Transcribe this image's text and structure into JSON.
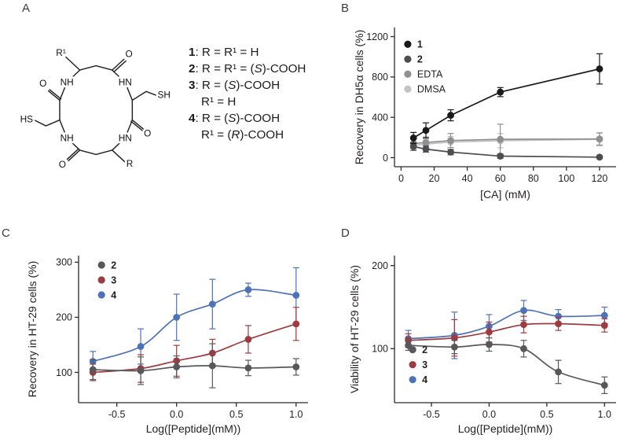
{
  "panels": {
    "a": {
      "label": "A"
    },
    "b": {
      "label": "B"
    },
    "c": {
      "label": "C"
    },
    "d": {
      "label": "D"
    }
  },
  "structure": {
    "labels": {
      "r1": "R¹",
      "r": "R",
      "sh_right": "SH",
      "hs_left": "HS",
      "nh_top_left": "NH",
      "hn_top_right": "HN",
      "nh_bottom_left": "NH",
      "hn_bottom_right": "HN",
      "o_top": "O",
      "o_right": "O",
      "o_bottom_left": "O",
      "o_left": "O"
    }
  },
  "compounds": [
    {
      "num": "1",
      "line1": ": R = R¹ = H",
      "line2": ""
    },
    {
      "num": "2",
      "line1": ": R = R¹ = (S)-COOH",
      "line2": ""
    },
    {
      "num": "3",
      "line1": ": R = (S)-COOH",
      "line2": "R¹ = H"
    },
    {
      "num": "4",
      "line1": ": R = (S)-COOH",
      "line2": "R¹ = (R)-COOH"
    }
  ],
  "chart_data": [
    {
      "panel": "B",
      "type": "scatter",
      "line_style": "straight",
      "xlabel": "[CA] (mM)",
      "ylabel": "Recovery in DH5α cells (%)",
      "xlim": [
        -4,
        130
      ],
      "ylim": [
        -90,
        1290
      ],
      "xticks": {
        "values": [
          0,
          20,
          40,
          60,
          80,
          100,
          120
        ],
        "labels": [
          "0",
          "20",
          "40",
          "60",
          "80",
          "100",
          "120"
        ]
      },
      "yticks": {
        "values": [
          0,
          400,
          800,
          1200
        ],
        "labels": [
          "0",
          "400",
          "800",
          "1200"
        ]
      },
      "x": [
        7.5,
        15,
        30,
        60,
        120
      ],
      "series": [
        {
          "name": "1",
          "color": "#1a1a1a",
          "values": [
            195,
            270,
            420,
            650,
            880
          ],
          "errors": [
            55,
            75,
            55,
            45,
            150
          ]
        },
        {
          "name": "2",
          "color": "#4d4d50",
          "values": [
            110,
            85,
            55,
            15,
            5
          ],
          "errors": [
            38,
            30,
            26,
            20,
            15
          ]
        },
        {
          "name": "EDTA",
          "color": "#8f8f92",
          "values": [
            140,
            150,
            170,
            182,
            185
          ],
          "errors": [
            45,
            55,
            70,
            150,
            60
          ]
        },
        {
          "name": "DMSA",
          "color": "#c2c2c4",
          "values": [
            120,
            135,
            155,
            168,
            182
          ],
          "errors": [
            35,
            45,
            55,
            70,
            65
          ]
        }
      ],
      "legend": {
        "position": "top-left",
        "fx": 0.06,
        "fy": 0.12
      }
    },
    {
      "panel": "C",
      "type": "scatter",
      "line_style": "smooth",
      "xlabel": "Log([Peptide](mM))",
      "ylabel": "Recovery in HT-29 cells (%)",
      "xlim": [
        -0.82,
        1.1
      ],
      "ylim": [
        45,
        312
      ],
      "xticks": {
        "values": [
          -0.5,
          0,
          0.5,
          1
        ],
        "labels": [
          "-0.5",
          "0.0",
          "0.5",
          "1.0"
        ]
      },
      "yticks": {
        "values": [
          100,
          200,
          300
        ],
        "labels": [
          "100",
          "200",
          "300"
        ]
      },
      "x": [
        -0.7,
        -0.3,
        0,
        0.3,
        0.6,
        1
      ],
      "series": [
        {
          "name": "2",
          "color": "#58585b",
          "values": [
            105,
            103,
            110,
            112,
            108,
            110
          ],
          "errors": [
            18,
            25,
            20,
            40,
            14,
            15
          ]
        },
        {
          "name": "3",
          "color": "#9e3b40",
          "values": [
            100,
            107,
            121,
            135,
            160,
            188
          ],
          "errors": [
            15,
            25,
            28,
            25,
            25,
            30
          ]
        },
        {
          "name": "4",
          "color": "#4d72b8",
          "values": [
            120,
            147,
            200,
            224,
            250,
            240
          ],
          "errors": [
            18,
            32,
            42,
            45,
            12,
            50
          ]
        }
      ],
      "legend": {
        "position": "top-left",
        "fx": 0.1,
        "fy": 0.064
      }
    },
    {
      "panel": "D",
      "type": "scatter",
      "line_style": "smooth",
      "xlabel": "Log([Peptide](mM))",
      "ylabel": "Viability of HT-29 cells (%)",
      "xlim": [
        -0.82,
        1.1
      ],
      "ylim": [
        35,
        212
      ],
      "xticks": {
        "values": [
          -0.5,
          0,
          0.5,
          1
        ],
        "labels": [
          "-0.5",
          "0.0",
          "0.5",
          "1.0"
        ]
      },
      "yticks": {
        "values": [
          100,
          200
        ],
        "labels": [
          "100",
          "200"
        ]
      },
      "x": [
        -0.7,
        -0.3,
        0,
        0.3,
        0.6,
        1
      ],
      "series": [
        {
          "name": "2",
          "color": "#58585b",
          "values": [
            104,
            102,
            105,
            100,
            72,
            56
          ],
          "errors": [
            6,
            8,
            8,
            10,
            14,
            10
          ]
        },
        {
          "name": "3",
          "color": "#9e3b40",
          "values": [
            110,
            113,
            120,
            129,
            130,
            128
          ],
          "errors": [
            8,
            22,
            12,
            10,
            8,
            8
          ]
        },
        {
          "name": "4",
          "color": "#4d72b8",
          "values": [
            112,
            116,
            127,
            146,
            139,
            140
          ],
          "errors": [
            10,
            28,
            14,
            12,
            8,
            10
          ]
        }
      ],
      "legend": {
        "position": "bottom-left",
        "fx": 0.082,
        "fy": 0.64
      }
    }
  ]
}
